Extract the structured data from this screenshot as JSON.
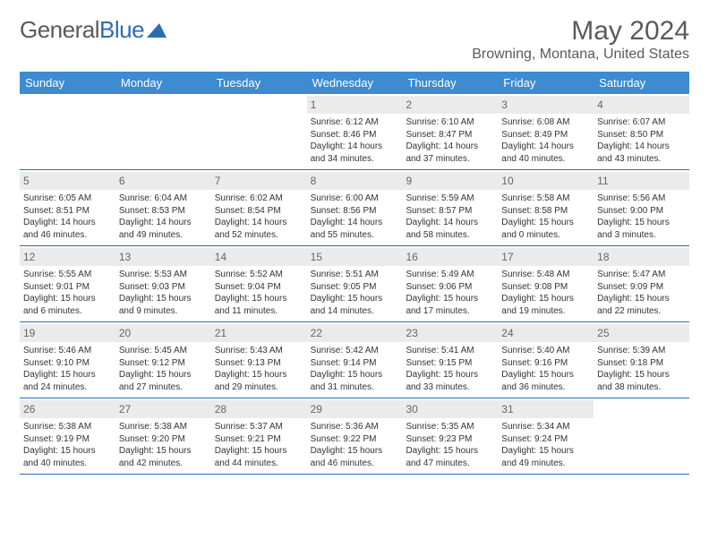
{
  "logo": {
    "part1": "General",
    "part2": "Blue"
  },
  "title": "May 2024",
  "location": "Browning, Montana, United States",
  "colors": {
    "header_bg": "#3d8bd0",
    "header_text": "#ffffff",
    "rule": "#2a6db5",
    "daynum_bg": "#ebebeb",
    "body_text": "#333333",
    "muted_text": "#5a5a5a"
  },
  "weekdays": [
    "Sunday",
    "Monday",
    "Tuesday",
    "Wednesday",
    "Thursday",
    "Friday",
    "Saturday"
  ],
  "weeks": [
    [
      null,
      null,
      null,
      {
        "n": "1",
        "sr": "Sunrise: 6:12 AM",
        "ss": "Sunset: 8:46 PM",
        "d1": "Daylight: 14 hours",
        "d2": "and 34 minutes."
      },
      {
        "n": "2",
        "sr": "Sunrise: 6:10 AM",
        "ss": "Sunset: 8:47 PM",
        "d1": "Daylight: 14 hours",
        "d2": "and 37 minutes."
      },
      {
        "n": "3",
        "sr": "Sunrise: 6:08 AM",
        "ss": "Sunset: 8:49 PM",
        "d1": "Daylight: 14 hours",
        "d2": "and 40 minutes."
      },
      {
        "n": "4",
        "sr": "Sunrise: 6:07 AM",
        "ss": "Sunset: 8:50 PM",
        "d1": "Daylight: 14 hours",
        "d2": "and 43 minutes."
      }
    ],
    [
      {
        "n": "5",
        "sr": "Sunrise: 6:05 AM",
        "ss": "Sunset: 8:51 PM",
        "d1": "Daylight: 14 hours",
        "d2": "and 46 minutes."
      },
      {
        "n": "6",
        "sr": "Sunrise: 6:04 AM",
        "ss": "Sunset: 8:53 PM",
        "d1": "Daylight: 14 hours",
        "d2": "and 49 minutes."
      },
      {
        "n": "7",
        "sr": "Sunrise: 6:02 AM",
        "ss": "Sunset: 8:54 PM",
        "d1": "Daylight: 14 hours",
        "d2": "and 52 minutes."
      },
      {
        "n": "8",
        "sr": "Sunrise: 6:00 AM",
        "ss": "Sunset: 8:56 PM",
        "d1": "Daylight: 14 hours",
        "d2": "and 55 minutes."
      },
      {
        "n": "9",
        "sr": "Sunrise: 5:59 AM",
        "ss": "Sunset: 8:57 PM",
        "d1": "Daylight: 14 hours",
        "d2": "and 58 minutes."
      },
      {
        "n": "10",
        "sr": "Sunrise: 5:58 AM",
        "ss": "Sunset: 8:58 PM",
        "d1": "Daylight: 15 hours",
        "d2": "and 0 minutes."
      },
      {
        "n": "11",
        "sr": "Sunrise: 5:56 AM",
        "ss": "Sunset: 9:00 PM",
        "d1": "Daylight: 15 hours",
        "d2": "and 3 minutes."
      }
    ],
    [
      {
        "n": "12",
        "sr": "Sunrise: 5:55 AM",
        "ss": "Sunset: 9:01 PM",
        "d1": "Daylight: 15 hours",
        "d2": "and 6 minutes."
      },
      {
        "n": "13",
        "sr": "Sunrise: 5:53 AM",
        "ss": "Sunset: 9:03 PM",
        "d1": "Daylight: 15 hours",
        "d2": "and 9 minutes."
      },
      {
        "n": "14",
        "sr": "Sunrise: 5:52 AM",
        "ss": "Sunset: 9:04 PM",
        "d1": "Daylight: 15 hours",
        "d2": "and 11 minutes."
      },
      {
        "n": "15",
        "sr": "Sunrise: 5:51 AM",
        "ss": "Sunset: 9:05 PM",
        "d1": "Daylight: 15 hours",
        "d2": "and 14 minutes."
      },
      {
        "n": "16",
        "sr": "Sunrise: 5:49 AM",
        "ss": "Sunset: 9:06 PM",
        "d1": "Daylight: 15 hours",
        "d2": "and 17 minutes."
      },
      {
        "n": "17",
        "sr": "Sunrise: 5:48 AM",
        "ss": "Sunset: 9:08 PM",
        "d1": "Daylight: 15 hours",
        "d2": "and 19 minutes."
      },
      {
        "n": "18",
        "sr": "Sunrise: 5:47 AM",
        "ss": "Sunset: 9:09 PM",
        "d1": "Daylight: 15 hours",
        "d2": "and 22 minutes."
      }
    ],
    [
      {
        "n": "19",
        "sr": "Sunrise: 5:46 AM",
        "ss": "Sunset: 9:10 PM",
        "d1": "Daylight: 15 hours",
        "d2": "and 24 minutes."
      },
      {
        "n": "20",
        "sr": "Sunrise: 5:45 AM",
        "ss": "Sunset: 9:12 PM",
        "d1": "Daylight: 15 hours",
        "d2": "and 27 minutes."
      },
      {
        "n": "21",
        "sr": "Sunrise: 5:43 AM",
        "ss": "Sunset: 9:13 PM",
        "d1": "Daylight: 15 hours",
        "d2": "and 29 minutes."
      },
      {
        "n": "22",
        "sr": "Sunrise: 5:42 AM",
        "ss": "Sunset: 9:14 PM",
        "d1": "Daylight: 15 hours",
        "d2": "and 31 minutes."
      },
      {
        "n": "23",
        "sr": "Sunrise: 5:41 AM",
        "ss": "Sunset: 9:15 PM",
        "d1": "Daylight: 15 hours",
        "d2": "and 33 minutes."
      },
      {
        "n": "24",
        "sr": "Sunrise: 5:40 AM",
        "ss": "Sunset: 9:16 PM",
        "d1": "Daylight: 15 hours",
        "d2": "and 36 minutes."
      },
      {
        "n": "25",
        "sr": "Sunrise: 5:39 AM",
        "ss": "Sunset: 9:18 PM",
        "d1": "Daylight: 15 hours",
        "d2": "and 38 minutes."
      }
    ],
    [
      {
        "n": "26",
        "sr": "Sunrise: 5:38 AM",
        "ss": "Sunset: 9:19 PM",
        "d1": "Daylight: 15 hours",
        "d2": "and 40 minutes."
      },
      {
        "n": "27",
        "sr": "Sunrise: 5:38 AM",
        "ss": "Sunset: 9:20 PM",
        "d1": "Daylight: 15 hours",
        "d2": "and 42 minutes."
      },
      {
        "n": "28",
        "sr": "Sunrise: 5:37 AM",
        "ss": "Sunset: 9:21 PM",
        "d1": "Daylight: 15 hours",
        "d2": "and 44 minutes."
      },
      {
        "n": "29",
        "sr": "Sunrise: 5:36 AM",
        "ss": "Sunset: 9:22 PM",
        "d1": "Daylight: 15 hours",
        "d2": "and 46 minutes."
      },
      {
        "n": "30",
        "sr": "Sunrise: 5:35 AM",
        "ss": "Sunset: 9:23 PM",
        "d1": "Daylight: 15 hours",
        "d2": "and 47 minutes."
      },
      {
        "n": "31",
        "sr": "Sunrise: 5:34 AM",
        "ss": "Sunset: 9:24 PM",
        "d1": "Daylight: 15 hours",
        "d2": "and 49 minutes."
      },
      null
    ]
  ]
}
